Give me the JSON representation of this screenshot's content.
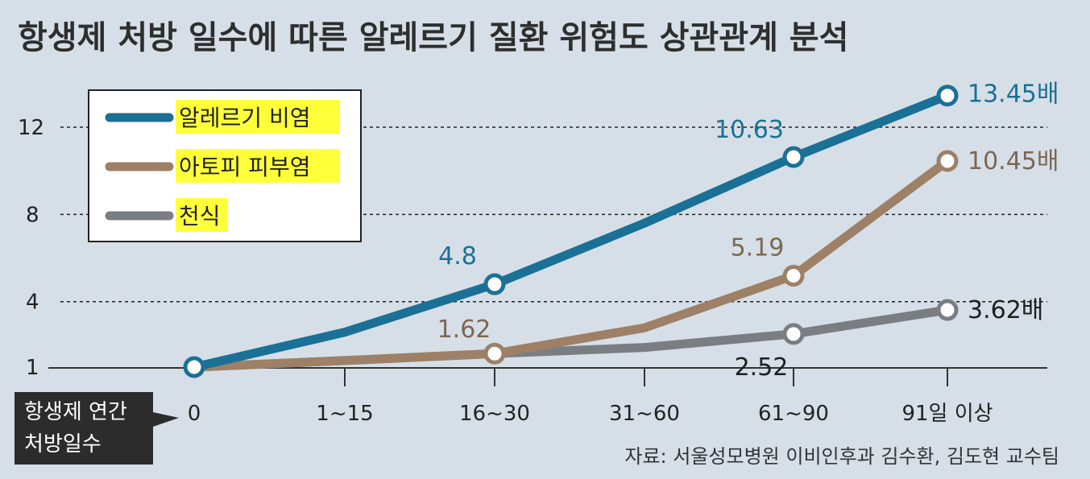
{
  "chart_data": {
    "type": "line",
    "title": "항생제 처방 일수에 따른 알레르기 질환 위험도 상관관계 분석",
    "xlabel": [
      "항생제 연간",
      "처방일수"
    ],
    "ylabel": "",
    "categories": [
      "0",
      "1~15",
      "16~30",
      "31~60",
      "61~90",
      "91일 이상"
    ],
    "yticks": [
      "1",
      "4",
      "8",
      "12"
    ],
    "ylim": [
      1,
      14.5
    ],
    "grid": "dashed horizontal at 4, 8, 12",
    "legend": "top-left",
    "series": [
      {
        "name": "알레르기 비염",
        "color": "#1b7096",
        "values": [
          1,
          2.6,
          4.8,
          7.6,
          10.63,
          13.45
        ],
        "labels": [
          null,
          null,
          "4.8",
          null,
          "10.63",
          "13.45배"
        ]
      },
      {
        "name": "아토피 피부염",
        "color": "#9e8067",
        "values": [
          1,
          1.3,
          1.62,
          2.8,
          5.19,
          10.45
        ],
        "labels": [
          null,
          null,
          "1.62",
          null,
          "5.19",
          "10.45배"
        ]
      },
      {
        "name": "천식",
        "color": "#7a7e82",
        "values": [
          1,
          1.3,
          1.62,
          1.9,
          2.52,
          3.62
        ],
        "labels": [
          null,
          null,
          null,
          null,
          "2.52",
          "3.62배"
        ]
      }
    ],
    "source": "자료: 서울성모병원 이비인후과 김수환, 김도현 교수팀"
  }
}
